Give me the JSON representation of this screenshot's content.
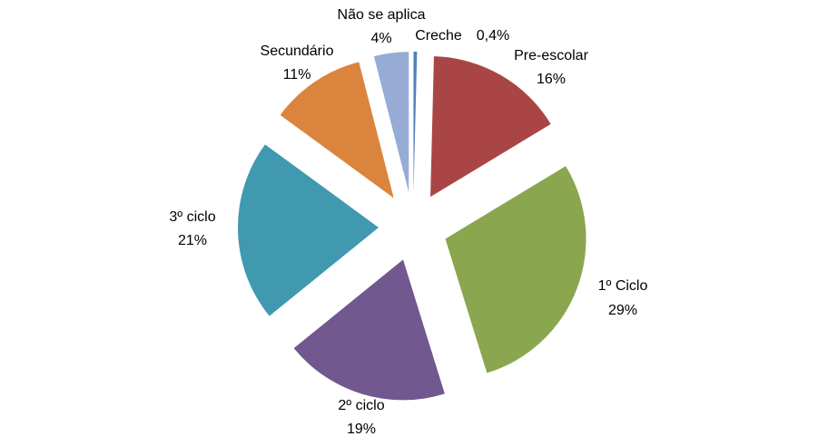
{
  "chart_data": {
    "type": "pie",
    "categories": [
      "Creche",
      "Pre-escolar",
      "1º Ciclo",
      "2º ciclo",
      "3º ciclo",
      "Secundário",
      "Não se aplica"
    ],
    "values": [
      0.4,
      16,
      29,
      19,
      21,
      11,
      4
    ],
    "value_labels": [
      "0,4%",
      "16%",
      "29%",
      "19%",
      "21%",
      "11%",
      "4%"
    ],
    "colors": [
      "#4f81bd",
      "#a94645",
      "#8aa64f",
      "#71588f",
      "#4199b0",
      "#db843d",
      "#96acd5"
    ]
  }
}
